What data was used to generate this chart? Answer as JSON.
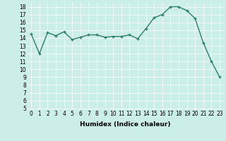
{
  "x": [
    0,
    1,
    2,
    3,
    4,
    5,
    6,
    7,
    8,
    9,
    10,
    11,
    12,
    13,
    14,
    15,
    16,
    17,
    18,
    19,
    20,
    21,
    22,
    23
  ],
  "y": [
    14.5,
    12.0,
    14.7,
    14.3,
    14.8,
    13.8,
    14.1,
    14.4,
    14.4,
    14.1,
    14.2,
    14.2,
    14.4,
    13.9,
    15.2,
    16.6,
    17.0,
    18.0,
    18.0,
    17.5,
    16.5,
    13.4,
    11.0,
    9.0
  ],
  "xlabel": "Humidex (Indice chaleur)",
  "xlim": [
    -0.5,
    23.5
  ],
  "ylim": [
    4.8,
    18.5
  ],
  "yticks": [
    5,
    6,
    7,
    8,
    9,
    10,
    11,
    12,
    13,
    14,
    15,
    16,
    17,
    18
  ],
  "xticks": [
    0,
    1,
    2,
    3,
    4,
    5,
    6,
    7,
    8,
    9,
    10,
    11,
    12,
    13,
    14,
    15,
    16,
    17,
    18,
    19,
    20,
    21,
    22,
    23
  ],
  "line_color": "#2e7d6e",
  "bg_color": "#cceee8",
  "grid_color": "#ffffff",
  "marker": "+",
  "marker_size": 3,
  "linewidth": 1.0,
  "tick_fontsize": 5.5,
  "xlabel_fontsize": 6.5
}
